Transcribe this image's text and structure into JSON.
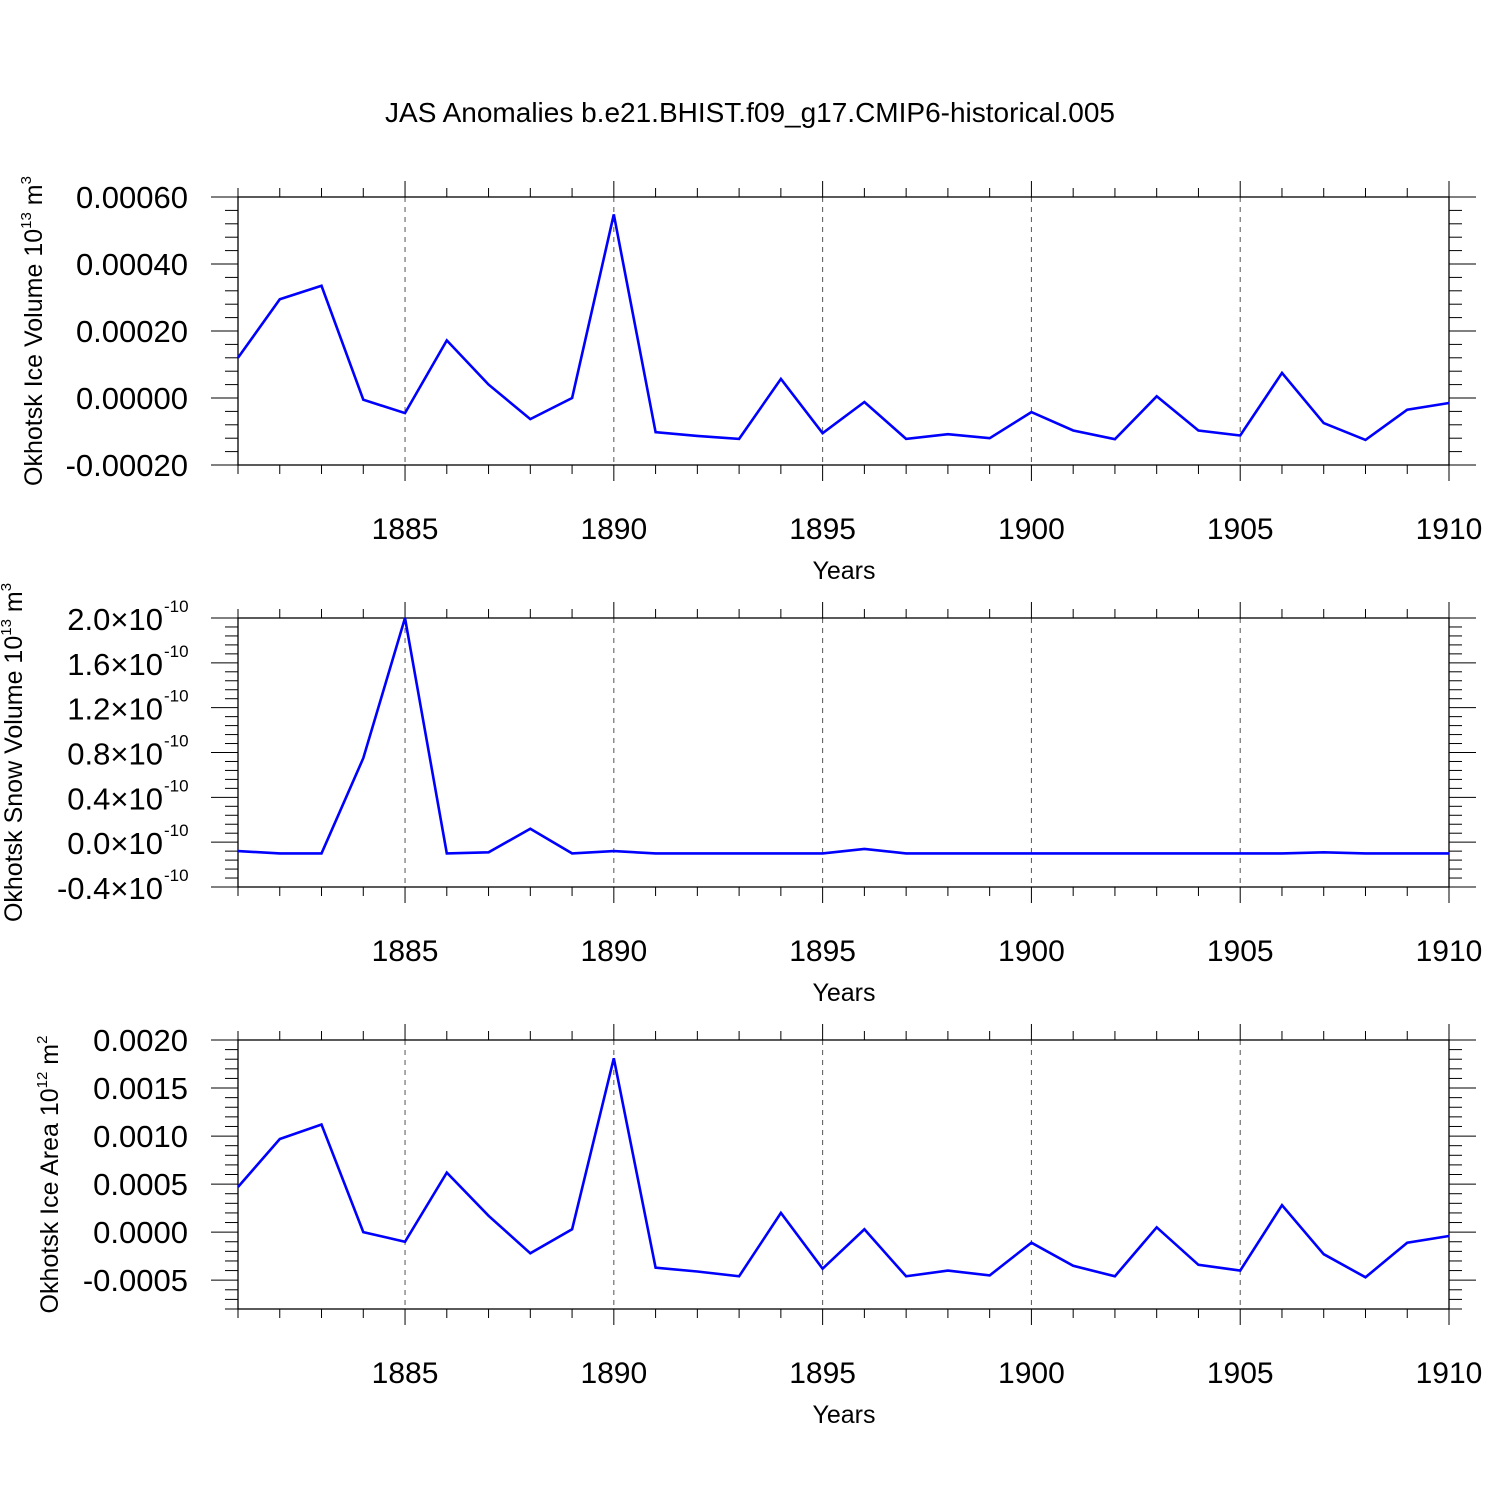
{
  "title": "JAS Anomalies b.e21.BHIST.f09_g17.CMIP6-historical.005",
  "line_color": "#0000ff",
  "chart_data": [
    {
      "type": "line",
      "ylabel": "Okhotsk Ice Volume 10",
      "ylabel_exp": "13",
      "ylabel_unit": " m",
      "ylabel_unit_exp": "3",
      "xlabel": "Years",
      "xlim": [
        1881,
        1910
      ],
      "ylim": [
        -0.0002,
        0.0006
      ],
      "x_ticks": [
        "1885",
        "1890",
        "1895",
        "1900",
        "1905",
        "1910"
      ],
      "y_ticks": [
        {
          "value": -0.0002,
          "label": "-0.00020"
        },
        {
          "value": 0.0,
          "label": "0.00000"
        },
        {
          "value": 0.0002,
          "label": "0.00020"
        },
        {
          "value": 0.0004,
          "label": "0.00040"
        },
        {
          "value": 0.0006,
          "label": "0.00060"
        }
      ],
      "grid": "vertical dashed at major x ticks",
      "series": [
        {
          "x": [
            1881,
            1882,
            1883,
            1884,
            1885,
            1886,
            1887,
            1888,
            1889,
            1890,
            1891,
            1892,
            1893,
            1894,
            1895,
            1896,
            1897,
            1898,
            1899,
            1900,
            1901,
            1902,
            1903,
            1904,
            1905,
            1906,
            1907,
            1908,
            1909,
            1910
          ],
          "values": [
            0.00012,
            0.000295,
            0.000335,
            -5e-06,
            -4.5e-05,
            0.000172,
            4e-05,
            -6.3e-05,
            0.0,
            0.000548,
            -0.000102,
            -0.000113,
            -0.000122,
            5.7e-05,
            -0.000105,
            -1.2e-05,
            -0.000122,
            -0.000108,
            -0.00012,
            -4.2e-05,
            -9.7e-05,
            -0.000123,
            5e-06,
            -9.7e-05,
            -0.000112,
            7.5e-05,
            -7.5e-05,
            -0.000125,
            -3.5e-05,
            -1.5e-05
          ]
        }
      ]
    },
    {
      "type": "line",
      "ylabel": "Okhotsk Snow Volume 10",
      "ylabel_exp": "13",
      "ylabel_unit": " m",
      "ylabel_unit_exp": "3",
      "xlabel": "Years",
      "xlim": [
        1881,
        1910
      ],
      "ylim": [
        -4e-11,
        2e-10
      ],
      "x_ticks": [
        "1885",
        "1890",
        "1895",
        "1900",
        "1905",
        "1910"
      ],
      "y_ticks": [
        {
          "value": -4e-11,
          "mantissa": "-0.4",
          "times": "×",
          "base": "10",
          "exp": "-10"
        },
        {
          "value": 0.0,
          "mantissa": "0.0",
          "times": "×",
          "base": "10",
          "exp": "-10"
        },
        {
          "value": 4e-11,
          "mantissa": "0.4",
          "times": "×",
          "base": "10",
          "exp": "-10"
        },
        {
          "value": 8e-11,
          "mantissa": "0.8",
          "times": "×",
          "base": "10",
          "exp": "-10"
        },
        {
          "value": 1.2e-10,
          "mantissa": "1.2",
          "times": "×",
          "base": "10",
          "exp": "-10"
        },
        {
          "value": 1.6e-10,
          "mantissa": "1.6",
          "times": "×",
          "base": "10",
          "exp": "-10"
        },
        {
          "value": 2e-10,
          "mantissa": "2.0",
          "times": "×",
          "base": "10",
          "exp": "-10"
        }
      ],
      "grid": "vertical dashed at major x ticks",
      "series": [
        {
          "x": [
            1881,
            1882,
            1883,
            1884,
            1885,
            1886,
            1887,
            1888,
            1889,
            1890,
            1891,
            1892,
            1893,
            1894,
            1895,
            1896,
            1897,
            1898,
            1899,
            1900,
            1901,
            1902,
            1903,
            1904,
            1905,
            1906,
            1907,
            1908,
            1909,
            1910
          ],
          "values": [
            -8e-12,
            -1e-11,
            -1e-11,
            7.5e-11,
            2e-10,
            -1e-11,
            -9e-12,
            1.2e-11,
            -1e-11,
            -8e-12,
            -1e-11,
            -1e-11,
            -1e-11,
            -1e-11,
            -1e-11,
            -6e-12,
            -1e-11,
            -1e-11,
            -1e-11,
            -1e-11,
            -1e-11,
            -1e-11,
            -1e-11,
            -1e-11,
            -1e-11,
            -1e-11,
            -9e-12,
            -1e-11,
            -1e-11,
            -1e-11
          ]
        }
      ]
    },
    {
      "type": "line",
      "ylabel": "Okhotsk Ice Area 10",
      "ylabel_exp": "12",
      "ylabel_unit": " m",
      "ylabel_unit_exp": "2",
      "xlabel": "Years",
      "xlim": [
        1881,
        1910
      ],
      "ylim": [
        -0.0008,
        0.002
      ],
      "x_ticks": [
        "1885",
        "1890",
        "1895",
        "1900",
        "1905",
        "1910"
      ],
      "y_ticks": [
        {
          "value": -0.0005,
          "label": "-0.0005"
        },
        {
          "value": 0.0,
          "label": "0.0000"
        },
        {
          "value": 0.0005,
          "label": "0.0005"
        },
        {
          "value": 0.001,
          "label": "0.0010"
        },
        {
          "value": 0.0015,
          "label": "0.0015"
        },
        {
          "value": 0.002,
          "label": "0.0020"
        }
      ],
      "grid": "vertical dashed at major x ticks",
      "series": [
        {
          "x": [
            1881,
            1882,
            1883,
            1884,
            1885,
            1886,
            1887,
            1888,
            1889,
            1890,
            1891,
            1892,
            1893,
            1894,
            1895,
            1896,
            1897,
            1898,
            1899,
            1900,
            1901,
            1902,
            1903,
            1904,
            1905,
            1906,
            1907,
            1908,
            1909,
            1910
          ],
          "values": [
            0.00047,
            0.00097,
            0.00112,
            0.0,
            -0.0001,
            0.00062,
            0.00017,
            -0.00022,
            3e-05,
            0.00181,
            -0.00037,
            -0.00041,
            -0.00046,
            0.0002,
            -0.00038,
            3e-05,
            -0.00046,
            -0.0004,
            -0.00045,
            -0.00011,
            -0.00035,
            -0.00046,
            5e-05,
            -0.00034,
            -0.0004,
            0.00028,
            -0.00023,
            -0.00047,
            -0.00011,
            -4e-05
          ]
        }
      ]
    }
  ]
}
